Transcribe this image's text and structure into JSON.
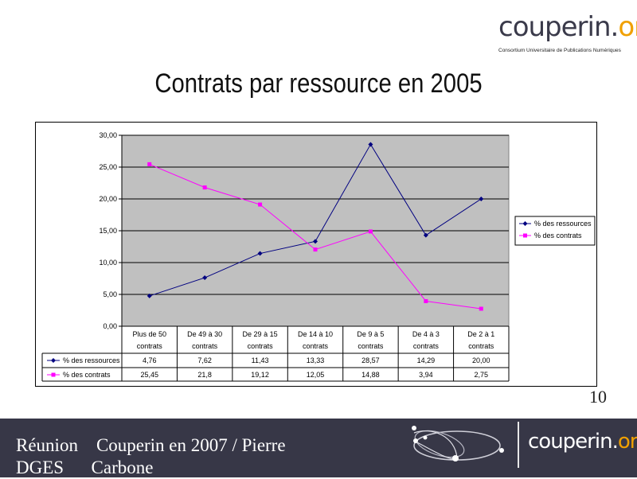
{
  "logo": {
    "main": "couperin.",
    "accent": "org",
    "tagline": "Consortium Universitaire de Publications Numériques"
  },
  "title": "Contrats par ressource en 2005",
  "page_number": "10",
  "footer": {
    "text": "Réunion    Couperin en 2007 / Pierre\nDGES      Carbone",
    "logo_main": "couperin.",
    "logo_accent": "org"
  },
  "colors": {
    "plot_bg": "#c0c0c0",
    "series_ressources": "#000080",
    "series_contrats": "#ff00ff",
    "footer_bg": "#373747",
    "logo_accent": "#f0a000"
  },
  "chart_data": {
    "type": "line",
    "categories": [
      [
        "Plus de 50",
        "contrats"
      ],
      [
        "De 49 à 30",
        "contrats"
      ],
      [
        "De 29 à 15",
        "contrats"
      ],
      [
        "De 14 à 10",
        "contrats"
      ],
      [
        "De 9 à 5",
        "contrats"
      ],
      [
        "De 4 à 3",
        "contrats"
      ],
      [
        "De 2 à 1",
        "contrats"
      ]
    ],
    "series": [
      {
        "name": "% des ressources",
        "values": [
          4.76,
          7.62,
          11.43,
          13.33,
          28.57,
          14.29,
          20.0
        ],
        "labels": [
          "4,76",
          "7,62",
          "11,43",
          "13,33",
          "28,57",
          "14,29",
          "20,00"
        ],
        "color": "#000080",
        "marker": "diamond"
      },
      {
        "name": "% des contrats",
        "values": [
          25.45,
          21.8,
          19.12,
          12.05,
          14.88,
          3.94,
          2.75
        ],
        "labels": [
          "25,45",
          "21,8",
          "19,12",
          "12,05",
          "14,88",
          "3,94",
          "2,75"
        ],
        "color": "#ff00ff",
        "marker": "square"
      }
    ],
    "ylim": [
      0,
      30
    ],
    "yticks": [
      "0,00",
      "5,00",
      "10,00",
      "15,00",
      "20,00",
      "25,00",
      "30,00"
    ],
    "grid": true,
    "legend_position": "right",
    "data_table": true
  }
}
